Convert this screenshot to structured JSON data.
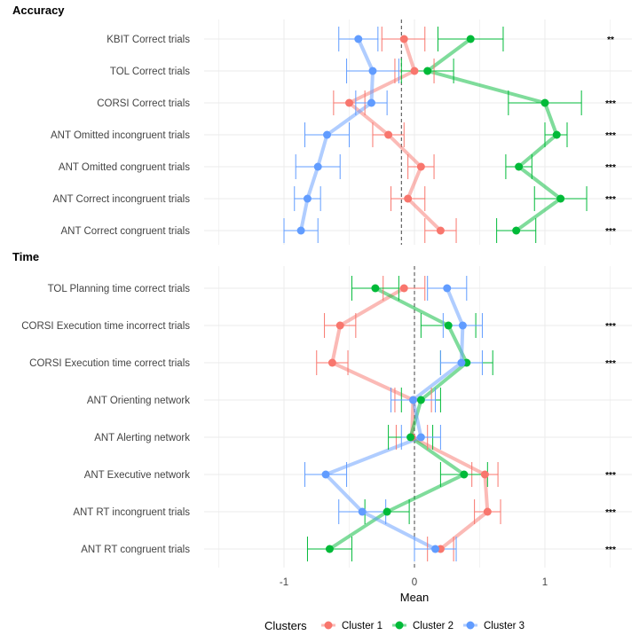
{
  "chart_data": {
    "type": "dot-whisker",
    "xlabel": "Mean",
    "x_ticks": [
      -1,
      0,
      1
    ],
    "xlim": [
      -1.7,
      1.6
    ],
    "legend": {
      "position": "bottom",
      "title": "Clusters",
      "entries": [
        {
          "name": "Cluster 1",
          "color": "#F8766D"
        },
        {
          "name": "Cluster 2",
          "color": "#00BA38"
        },
        {
          "name": "Cluster 3",
          "color": "#619CFF"
        }
      ]
    },
    "panels": [
      {
        "title": "Accuracy",
        "reference_line": -0.1,
        "categories": [
          "KBIT Correct trials",
          "TOL Correct trials",
          "CORSI Correct trials",
          "ANT Omitted incongruent trials",
          "ANT Omitted congruent trials",
          "ANT Correct incongruent trials",
          "ANT Correct congruent trials"
        ],
        "significance": [
          "**",
          "",
          "***",
          "***",
          "***",
          "***",
          "***"
        ],
        "series": [
          {
            "name": "Cluster 1",
            "values": [
              -0.08,
              0.0,
              -0.5,
              -0.2,
              0.05,
              -0.05,
              0.2
            ],
            "lo": [
              -0.25,
              -0.15,
              -0.62,
              -0.32,
              -0.05,
              -0.18,
              0.08
            ],
            "hi": [
              0.08,
              0.15,
              -0.38,
              -0.08,
              0.15,
              0.08,
              0.32
            ]
          },
          {
            "name": "Cluster 2",
            "values": [
              0.43,
              0.1,
              1.0,
              1.09,
              0.8,
              1.12,
              0.78
            ],
            "lo": [
              0.18,
              -0.1,
              0.72,
              1.0,
              0.7,
              0.92,
              0.63
            ],
            "hi": [
              0.68,
              0.3,
              1.28,
              1.17,
              0.9,
              1.32,
              0.93
            ]
          },
          {
            "name": "Cluster 3",
            "values": [
              -0.43,
              -0.32,
              -0.33,
              -0.67,
              -0.74,
              -0.82,
              -0.87
            ],
            "lo": [
              -0.58,
              -0.52,
              -0.45,
              -0.84,
              -0.91,
              -0.92,
              -1.0
            ],
            "hi": [
              -0.28,
              -0.12,
              -0.21,
              -0.5,
              -0.57,
              -0.72,
              -0.74
            ]
          }
        ]
      },
      {
        "title": "Time",
        "reference_line": 0,
        "categories": [
          "TOL Planning time correct trials",
          "CORSI Execution time incorrect trials",
          "CORSI Execution time correct trials",
          "ANT Orienting network",
          "ANT Alerting network",
          "ANT Executive network",
          "ANT RT incongruent trials",
          "ANT RT congruent trials"
        ],
        "significance": [
          "",
          "***",
          "***",
          "",
          "",
          "***",
          "***",
          "***"
        ],
        "series": [
          {
            "name": "Cluster 1",
            "values": [
              -0.08,
              -0.57,
              -0.63,
              -0.01,
              -0.02,
              0.54,
              0.56,
              0.2
            ],
            "lo": [
              -0.24,
              -0.69,
              -0.75,
              -0.15,
              -0.14,
              0.44,
              0.46,
              0.1
            ],
            "hi": [
              0.08,
              -0.45,
              -0.51,
              0.13,
              0.1,
              0.64,
              0.66,
              0.3
            ]
          },
          {
            "name": "Cluster 2",
            "values": [
              -0.3,
              0.26,
              0.4,
              0.05,
              -0.03,
              0.38,
              -0.21,
              -0.65
            ],
            "lo": [
              -0.48,
              0.05,
              0.2,
              -0.1,
              -0.2,
              0.2,
              -0.38,
              -0.82
            ],
            "hi": [
              -0.12,
              0.47,
              0.6,
              0.2,
              0.14,
              0.56,
              -0.04,
              -0.48
            ]
          },
          {
            "name": "Cluster 3",
            "values": [
              0.25,
              0.37,
              0.36,
              -0.01,
              0.05,
              -0.68,
              -0.4,
              0.16
            ],
            "lo": [
              0.1,
              0.22,
              0.2,
              -0.18,
              -0.1,
              -0.84,
              -0.58,
              0.0
            ],
            "hi": [
              0.4,
              0.52,
              0.52,
              0.16,
              0.2,
              -0.52,
              -0.22,
              0.32
            ]
          }
        ]
      }
    ]
  }
}
